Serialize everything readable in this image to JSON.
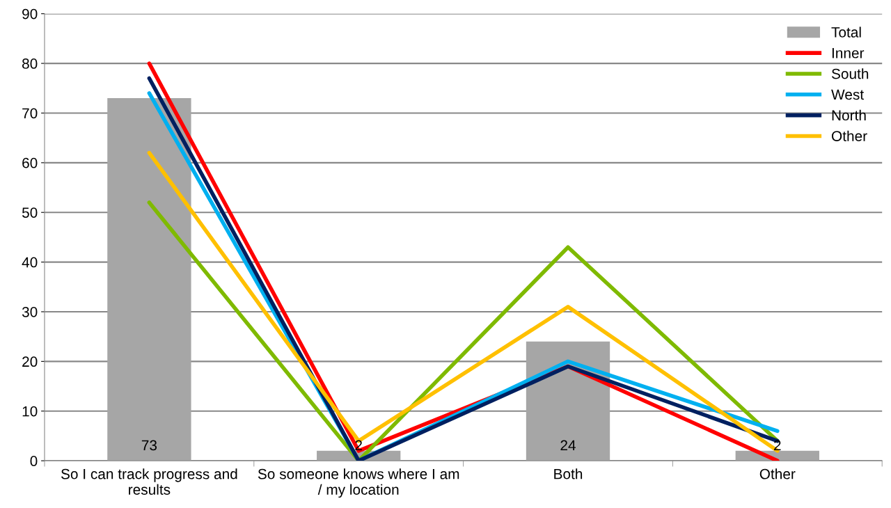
{
  "chart_data": {
    "type": "bar",
    "categories": [
      "So I can track progress and results",
      "So someone knows where I am / my location",
      "Both",
      "Other"
    ],
    "series": [
      {
        "name": "Total",
        "color": "#a6a6a6",
        "values": [
          73,
          2,
          24,
          2
        ],
        "value_labels": [
          "73",
          "2",
          "24",
          "2"
        ]
      },
      {
        "name": "Inner",
        "type": "line",
        "color": "#ff0000",
        "values": [
          80,
          2,
          19,
          0
        ]
      },
      {
        "name": "South",
        "type": "line",
        "color": "#7fba00",
        "values": [
          52,
          0,
          43,
          4
        ]
      },
      {
        "name": "West",
        "type": "line",
        "color": "#00b0f0",
        "values": [
          74,
          0,
          20,
          6
        ]
      },
      {
        "name": "North",
        "type": "line",
        "color": "#002060",
        "values": [
          77,
          0,
          19,
          4
        ]
      },
      {
        "name": "Other",
        "type": "line",
        "color": "#ffc000",
        "values": [
          62,
          4,
          31,
          2
        ]
      }
    ],
    "ylim": [
      0,
      90
    ],
    "yticks": [
      0,
      10,
      20,
      30,
      40,
      50,
      60,
      70,
      80,
      90
    ],
    "grid": "y",
    "legend": "top right",
    "marker": "none",
    "line_style": "solid"
  }
}
